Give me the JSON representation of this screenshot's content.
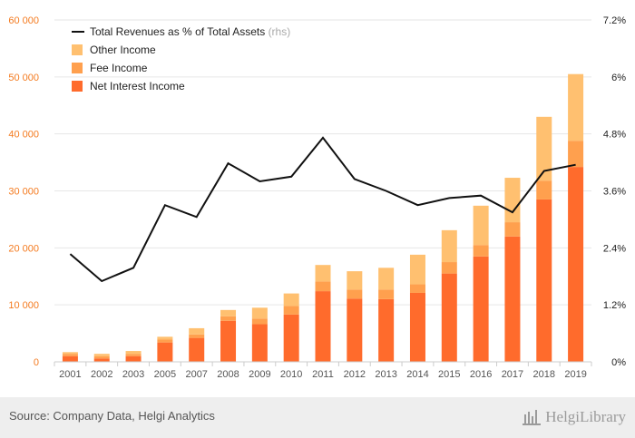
{
  "chart_data": {
    "type": "bar",
    "categories": [
      "2001",
      "2002",
      "2003",
      "2005",
      "2007",
      "2008",
      "2009",
      "2010",
      "2011",
      "2012",
      "2013",
      "2014",
      "2015",
      "2016",
      "2017",
      "2018",
      "2019"
    ],
    "series": [
      {
        "name": "Net Interest Income",
        "values": [
          1000,
          600,
          1000,
          3400,
          4200,
          7200,
          6600,
          8300,
          12400,
          11100,
          11000,
          12100,
          15500,
          18500,
          22000,
          28500,
          34200
        ]
      },
      {
        "name": "Fee Income",
        "values": [
          400,
          400,
          400,
          500,
          600,
          800,
          1000,
          1500,
          1700,
          1600,
          1700,
          1500,
          2000,
          2000,
          2500,
          3300,
          4600
        ]
      },
      {
        "name": "Other Income",
        "values": [
          300,
          400,
          500,
          500,
          1100,
          1100,
          1900,
          2200,
          2900,
          3200,
          3800,
          5200,
          5600,
          6900,
          7800,
          11200,
          11700
        ]
      }
    ],
    "line": {
      "name": "Total Revenues as % of Total Assets",
      "suffix": "(rhs)",
      "values": [
        2.27,
        1.7,
        1.98,
        3.3,
        3.05,
        4.18,
        3.8,
        3.9,
        4.72,
        3.85,
        3.6,
        3.3,
        3.45,
        3.5,
        3.15,
        4.02,
        4.15
      ]
    },
    "ylim": [
      0,
      60000
    ],
    "y_ticks": [
      "0",
      "10 000",
      "20 000",
      "30 000",
      "40 000",
      "50 000",
      "60 000"
    ],
    "y2lim": [
      0,
      7.2
    ],
    "y2_ticks": [
      "0%",
      "1.2%",
      "2.4%",
      "3.6%",
      "4.8%",
      "6%",
      "7.2%"
    ],
    "colors": {
      "Net Interest Income": "#ff6b2c",
      "Fee Income": "#ffa04e",
      "Other Income": "#ffc070",
      "line": "#111111",
      "axis_left": "#f47b20",
      "axis_right": "#222222",
      "grid": "#e6e6e6"
    },
    "legend_position": "top-left",
    "grid": true
  },
  "footer": {
    "source": "Source: Company Data, Helgi Analytics",
    "logo_text": "HelgiLibrary"
  }
}
